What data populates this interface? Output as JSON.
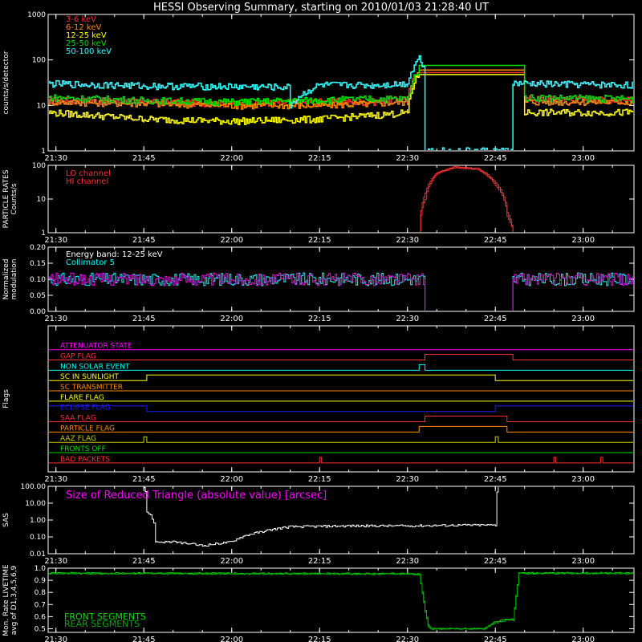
{
  "title": "HESSI Observing Summary, starting on 2010/01/03 21:28:40 UT",
  "time_ticks": [
    "21:30",
    "21:45",
    "22:00",
    "22:15",
    "22:30",
    "22:45",
    "23:00"
  ],
  "colors": {
    "background": "#000000",
    "axis": "#ffffff",
    "band_3_6": "#ff3030",
    "band_6_12": "#ff8c00",
    "band_12_25": "#ffff00",
    "band_25_50": "#00dd00",
    "band_50_100": "#33ffff",
    "magenta": "#ff00ff",
    "cyan": "#00ffff",
    "blue": "#1e1eff",
    "green": "#00dd00"
  },
  "chart_data": [
    {
      "type": "line",
      "title": "HESSI Observing Summary, starting on 2010/01/03 21:28:40 UT",
      "ylabel": "counts/s/detector",
      "yscale": "log",
      "ylim": [
        1,
        1000
      ],
      "xlim": [
        "21:28:40",
        "23:08:40"
      ],
      "ytick_labels": [
        "1",
        "10",
        "100",
        "1000"
      ],
      "series": [
        {
          "name": "3-6 keV",
          "color": "#ff3030",
          "x": [
            "21:28:40",
            "21:45",
            "22:00",
            "22:15",
            "22:24",
            "22:30",
            "22:32",
            "22:33:30",
            "22:48",
            "22:50",
            "23:08:40"
          ],
          "y": [
            13,
            12,
            11,
            12,
            12,
            14,
            60,
            null,
            null,
            14,
            13
          ]
        },
        {
          "name": "6-12 keV",
          "color": "#ff8c00",
          "x": [
            "21:28:40",
            "21:45",
            "22:00",
            "22:15",
            "22:24",
            "22:30",
            "22:32",
            "22:33:30",
            "22:48",
            "22:50",
            "23:08:40"
          ],
          "y": [
            12,
            11,
            10,
            10,
            11,
            12,
            55,
            null,
            null,
            12,
            12
          ]
        },
        {
          "name": "12-25 keV",
          "color": "#ffff00",
          "x": [
            "21:28:40",
            "21:45",
            "22:00",
            "22:15",
            "22:24",
            "22:30",
            "22:32",
            "22:33:30",
            "22:48",
            "22:50",
            "23:08:40"
          ],
          "y": [
            7,
            5,
            4.5,
            5,
            6,
            7,
            50,
            null,
            null,
            7,
            7
          ]
        },
        {
          "name": "25-50 keV",
          "color": "#00dd00",
          "x": [
            "21:28:40",
            "21:45",
            "22:00",
            "22:15",
            "22:24",
            "22:30",
            "22:32",
            "22:33:30",
            "22:48",
            "22:50",
            "23:08:40"
          ],
          "y": [
            15,
            13,
            12,
            13,
            14,
            14,
            65,
            null,
            null,
            15,
            14
          ]
        },
        {
          "name": "50-100 keV",
          "color": "#33ffff",
          "x": [
            "21:28:40",
            "21:45",
            "22:00",
            "22:10",
            "22:10",
            "22:15",
            "22:24",
            "22:30",
            "22:32",
            "22:33",
            "22:33",
            "22:48",
            "22:48",
            "23:08:40"
          ],
          "y": [
            30,
            27,
            26,
            25,
            10,
            28,
            28,
            30,
            110,
            60,
            1,
            1,
            30,
            28
          ]
        }
      ]
    },
    {
      "type": "line",
      "ylabel": "PARTICLE RATES Counts/s",
      "yscale": "log",
      "ylim": [
        1,
        100
      ],
      "ytick_labels": [
        "1",
        "10",
        "100"
      ],
      "series": [
        {
          "name": "LO channel",
          "color": "#ff3030",
          "x": [
            "21:28:40",
            "22:32",
            "22:33",
            "22:35",
            "22:38",
            "22:42",
            "22:45",
            "22:47",
            "22:48",
            "23:08:40"
          ],
          "y": [
            1,
            1,
            15,
            60,
            90,
            80,
            30,
            4,
            1,
            1
          ]
        },
        {
          "name": "HI channel",
          "color": "#ff3030",
          "x": [
            "21:28:40",
            "22:32",
            "22:33",
            "22:35",
            "22:38",
            "22:42",
            "22:45",
            "22:47",
            "22:48",
            "23:08:40"
          ],
          "y": [
            1,
            1,
            10,
            55,
            85,
            75,
            25,
            3,
            1,
            1
          ]
        }
      ]
    },
    {
      "type": "line",
      "ylabel": "Normalized modulation",
      "ylim": [
        0.0,
        0.2
      ],
      "ytick_labels": [
        "0.00",
        "0.05",
        "0.10",
        "0.15",
        "0.20"
      ],
      "annotations": [
        "Energy band: 12-25 keV"
      ],
      "series": [
        {
          "name": "Collimator 5",
          "color": "#00ffff",
          "x": [
            "21:28:40",
            "22:33",
            "22:33",
            "22:48",
            "22:48",
            "23:08:40"
          ],
          "y": [
            0.1,
            0.1,
            0.0,
            0.0,
            0.1,
            0.1
          ]
        },
        {
          "name": "",
          "color": "#ff00ff",
          "x": [
            "21:28:40",
            "22:33",
            "22:33",
            "22:48",
            "22:48",
            "23:08:40"
          ],
          "y": [
            0.1,
            0.1,
            0.0,
            0.0,
            0.1,
            0.1
          ]
        }
      ]
    },
    {
      "type": "line",
      "ylabel": "Flags",
      "series": [
        {
          "name": "ATTENUATOR STATE",
          "color": "#ff00ff",
          "segments": [
            [
              "21:28:40",
              "23:08:40",
              0
            ]
          ]
        },
        {
          "name": "GAP FLAG",
          "color": "#ff3030",
          "segments": [
            [
              "21:28:40",
              "22:33",
              0
            ],
            [
              "22:33",
              "22:48",
              1
            ],
            [
              "22:48",
              "23:08:40",
              0
            ]
          ]
        },
        {
          "name": "NON SOLAR EVENT",
          "color": "#00ffff",
          "segments": [
            [
              "21:28:40",
              "22:32",
              0
            ],
            [
              "22:32",
              "22:33",
              1
            ],
            [
              "22:33",
              "23:08:40",
              0
            ]
          ]
        },
        {
          "name": "SC IN SUNLIGHT",
          "color": "#ffff00",
          "segments": [
            [
              "21:28:40",
              "21:45:30",
              0
            ],
            [
              "21:45:30",
              "22:45",
              1
            ],
            [
              "22:45",
              "23:08:40",
              0
            ]
          ]
        },
        {
          "name": "SC TRANSMITTER",
          "color": "#ff8c00",
          "segments": [
            [
              "21:28:40",
              "23:08:40",
              0
            ]
          ]
        },
        {
          "name": "FLARE FLAG",
          "color": "#ffff00",
          "segments": [
            [
              "21:28:40",
              "23:08:40",
              0
            ]
          ]
        },
        {
          "name": "ECLIPSE FLAG",
          "color": "#1e1eff",
          "segments": [
            [
              "21:28:40",
              "21:45:30",
              1
            ],
            [
              "21:45:30",
              "22:45",
              0
            ],
            [
              "22:45",
              "23:08:40",
              1
            ]
          ]
        },
        {
          "name": "SAA FLAG",
          "color": "#ff3030",
          "segments": [
            [
              "21:28:40",
              "22:33",
              0
            ],
            [
              "22:33",
              "22:47",
              1
            ],
            [
              "22:47",
              "23:08:40",
              0
            ]
          ]
        },
        {
          "name": "PARTICLE FLAG",
          "color": "#ff8c00",
          "segments": [
            [
              "21:28:40",
              "22:32",
              0
            ],
            [
              "22:32",
              "22:47",
              1
            ],
            [
              "22:47",
              "23:08:40",
              0
            ]
          ]
        },
        {
          "name": "AAZ FLAG",
          "color": "#cccc00",
          "segments": [
            [
              "21:28:40",
              "21:45",
              0
            ],
            [
              "21:45",
              "21:45:30",
              1
            ],
            [
              "21:45:30",
              "22:45",
              0
            ],
            [
              "22:45",
              "22:45:30",
              1
            ],
            [
              "22:45:30",
              "23:08:40",
              0
            ]
          ]
        },
        {
          "name": "FRONTS OFF",
          "color": "#00dd00",
          "segments": [
            [
              "21:28:40",
              "23:08:40",
              0
            ]
          ]
        },
        {
          "name": "BAD PACKETS",
          "color": "#ff3030",
          "segments": [
            [
              "21:28:40",
              "22:15",
              0
            ],
            [
              "22:15",
              "22:15:20",
              1
            ],
            [
              "22:15:20",
              "22:55",
              0
            ],
            [
              "22:55",
              "22:55:20",
              1
            ],
            [
              "22:55:20",
              "23:03",
              0
            ],
            [
              "23:03",
              "23:03:20",
              1
            ],
            [
              "23:03:20",
              "23:08:40",
              0
            ]
          ]
        }
      ]
    },
    {
      "type": "line",
      "ylabel": "SAS",
      "yscale": "log",
      "ylim": [
        0.01,
        100
      ],
      "ytick_labels": [
        "0.01",
        "0.10",
        "1.00",
        "10.00",
        "100.00"
      ],
      "annotations": [
        "Size of Reduced Triangle (absolute value) [arcsec]"
      ],
      "series": [
        {
          "name": "",
          "color": "#ffffff",
          "x": [
            "21:45",
            "21:45:30",
            "21:47",
            "21:50",
            "21:55",
            "22:00",
            "22:05",
            "22:10",
            "22:20",
            "22:30",
            "22:40",
            "22:45",
            "22:45:30"
          ],
          "y": [
            100,
            3,
            0.05,
            0.05,
            0.03,
            0.05,
            0.2,
            0.4,
            0.45,
            0.45,
            0.5,
            0.5,
            100
          ]
        }
      ]
    },
    {
      "type": "line",
      "ylabel": "Mon. Rate LIVETIME avg of D1,3,4,5,6,9",
      "ylim": [
        0.47,
        1.0
      ],
      "ytick_labels": [
        "0.5",
        "0.6",
        "0.7",
        "0.8",
        "0.9",
        "1.0"
      ],
      "series": [
        {
          "name": "FRONT SEGMENTS",
          "color": "#00dd00",
          "x": [
            "21:28:40",
            "22:30",
            "22:32",
            "22:33",
            "22:33:30",
            "22:34",
            "22:43",
            "22:45",
            "22:47",
            "22:48",
            "22:49",
            "23:08:40"
          ],
          "y": [
            0.96,
            0.955,
            0.95,
            0.65,
            0.53,
            0.5,
            0.5,
            0.56,
            0.58,
            0.58,
            0.96,
            0.96
          ]
        },
        {
          "name": "REAR SEGMENTS",
          "color": "#00aa00",
          "x": [
            "21:28:40",
            "22:30",
            "22:32",
            "22:33",
            "22:33:30",
            "22:34",
            "22:43",
            "22:45",
            "22:47",
            "22:48",
            "22:49",
            "23:08:40"
          ],
          "y": [
            0.955,
            0.95,
            0.945,
            0.64,
            0.52,
            0.5,
            0.5,
            0.55,
            0.57,
            0.57,
            0.955,
            0.955
          ]
        }
      ]
    }
  ]
}
